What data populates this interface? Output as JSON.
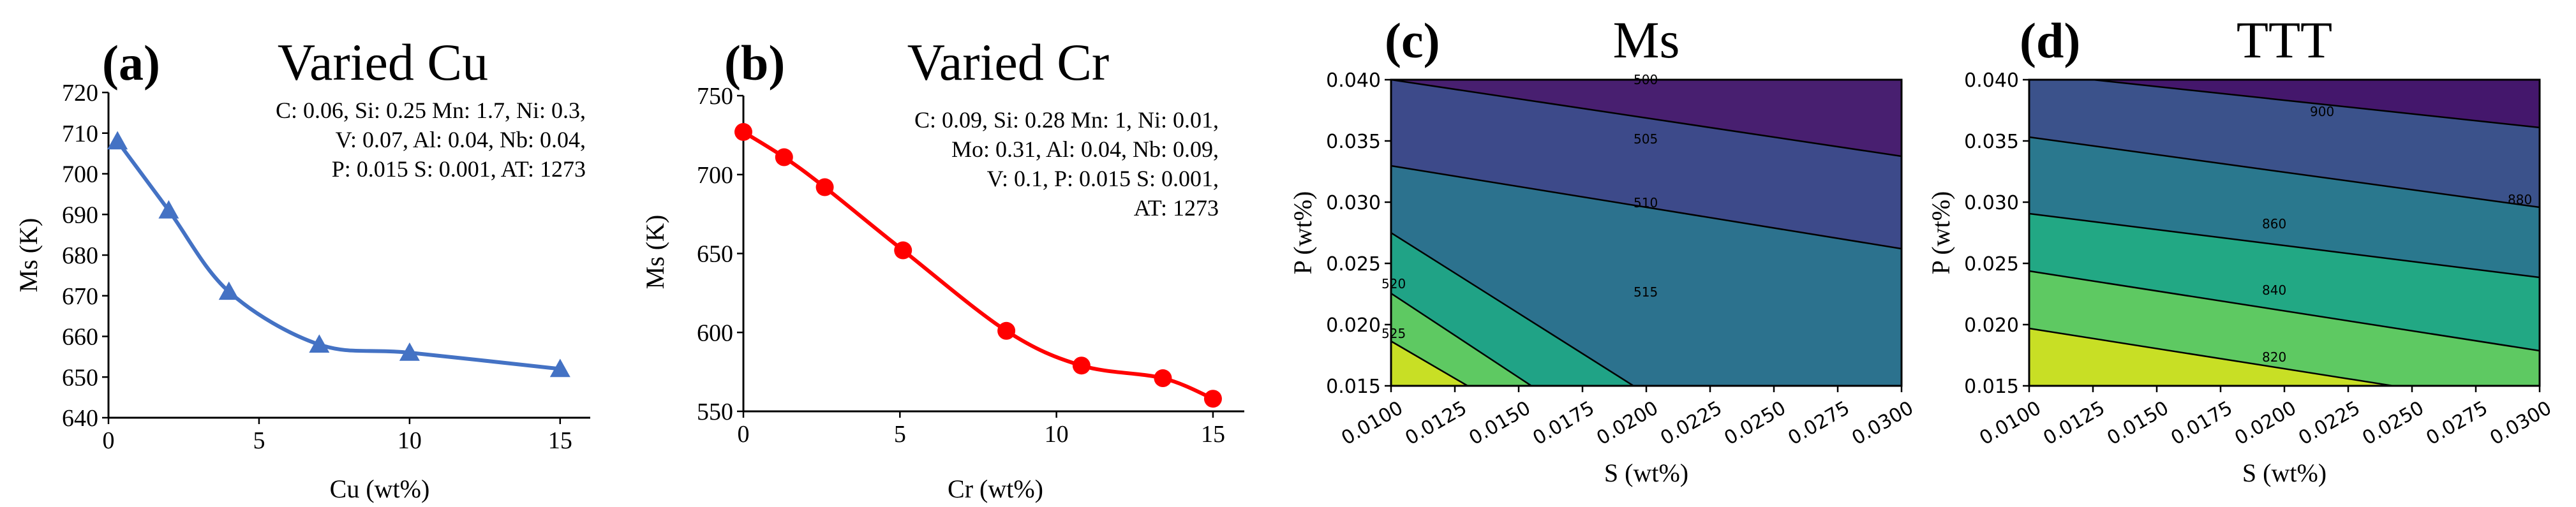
{
  "chart_data": [
    {
      "type": "line",
      "panel": "(a)",
      "title": "Varied Cu",
      "xlabel": "Cu (wt%)",
      "ylabel": "Ms (K)",
      "xlim": [
        0,
        16
      ],
      "ylim": [
        640,
        720
      ],
      "xticks": [
        0,
        5,
        10,
        15
      ],
      "yticks": [
        640,
        650,
        660,
        670,
        680,
        690,
        700,
        710,
        720
      ],
      "marker": "triangle",
      "color": "#4472c4",
      "series": [
        {
          "name": "Ms",
          "x": [
            0.3,
            2,
            4,
            7,
            10,
            15
          ],
          "y": [
            708,
            691,
            671,
            658,
            656,
            652
          ]
        }
      ],
      "annotation_lines": [
        "C: 0.06, Si: 0.25 Mn: 1.7, Ni: 0.3,",
        "V: 0.07, Al: 0.04, Nb: 0.04,",
        "P: 0.015 S: 0.001, AT: 1273"
      ]
    },
    {
      "type": "line",
      "panel": "(b)",
      "title": "Varied Cr",
      "xlabel": "Cr (wt%)",
      "ylabel": "Ms (K)",
      "xlim": [
        0,
        16
      ],
      "ylim": [
        550,
        750
      ],
      "xticks": [
        0,
        5,
        10,
        15
      ],
      "yticks": [
        550,
        600,
        650,
        700,
        750
      ],
      "marker": "circle",
      "color": "#ff0000",
      "series": [
        {
          "name": "Ms",
          "x": [
            0,
            1.3,
            2.6,
            5.1,
            8.4,
            10.8,
            13.4,
            15
          ],
          "y": [
            727,
            711,
            692,
            652,
            601,
            579,
            571,
            558
          ]
        }
      ],
      "annotation_lines": [
        "C: 0.09, Si: 0.28 Mn: 1, Ni: 0.01,",
        "Mo: 0.31,  Al: 0.04, Nb: 0.09,",
        "V: 0.1, P: 0.015 S: 0.001,",
        "AT: 1273"
      ]
    },
    {
      "type": "heatmap",
      "panel": "(c)",
      "title": "Ms",
      "xlabel": "S  (wt%)",
      "ylabel": "P (wt%)",
      "xlim": [
        0.01,
        0.03
      ],
      "ylim": [
        0.015,
        0.04
      ],
      "xticks": [
        "0.0100",
        "0.0125",
        "0.0150",
        "0.0175",
        "0.0200",
        "0.0225",
        "0.0250",
        "0.0275",
        "0.0300"
      ],
      "yticks": [
        "0.015",
        "0.020",
        "0.025",
        "0.030",
        "0.035",
        "0.040"
      ],
      "contour_levels": [
        500,
        505,
        510,
        515,
        520,
        525
      ],
      "contour_labels": [
        "500",
        "505",
        "510",
        "515",
        "520",
        "525"
      ],
      "colors": [
        "#481f70",
        "#3d4a8a",
        "#2c728e",
        "#20a386",
        "#5ec962",
        "#c8df25"
      ]
    },
    {
      "type": "heatmap",
      "panel": "(d)",
      "title": "TTT",
      "xlabel": "S  (wt%)",
      "ylabel": "P (wt%)",
      "xlim": [
        0.01,
        0.03
      ],
      "ylim": [
        0.015,
        0.04
      ],
      "xticks": [
        "0.0100",
        "0.0125",
        "0.0150",
        "0.0175",
        "0.0200",
        "0.0225",
        "0.0250",
        "0.0275",
        "0.0300"
      ],
      "yticks": [
        "0.015",
        "0.020",
        "0.025",
        "0.030",
        "0.035",
        "0.040"
      ],
      "contour_levels": [
        820,
        840,
        860,
        880,
        900
      ],
      "contour_labels": [
        "820",
        "840",
        "860",
        "880",
        "900"
      ],
      "colors": [
        "#44176c",
        "#3b528b",
        "#2a788e",
        "#22a884",
        "#5ec962",
        "#c8df25"
      ]
    }
  ]
}
